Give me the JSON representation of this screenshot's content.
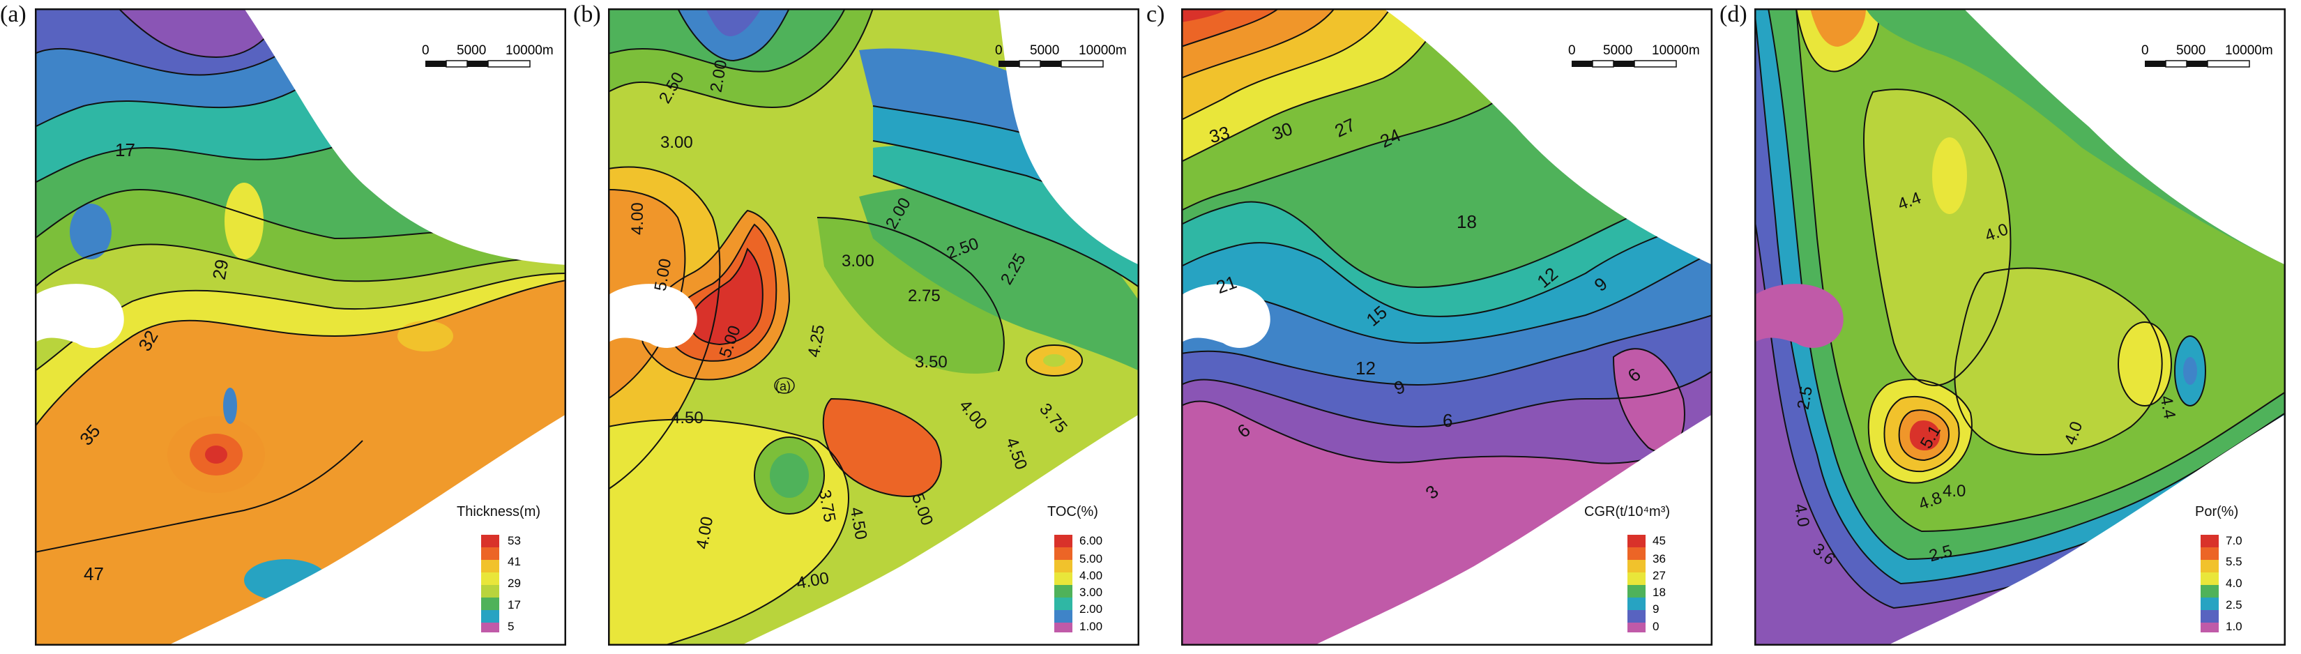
{
  "colors": {
    "ramp": [
      "#c05aa8",
      "#8a55b5",
      "#5863c0",
      "#3f84c8",
      "#27a3c2",
      "#2fb7a4",
      "#4fb25a",
      "#7cbf3a",
      "#b9d43c",
      "#e9e63a",
      "#f1c22c",
      "#f0962a",
      "#ec6526",
      "#d9322a"
    ],
    "frame": "#111111",
    "mask": "#ffffff"
  },
  "scalebar": {
    "ticks": [
      "0",
      "5000",
      "10000m"
    ]
  },
  "panels": [
    {
      "id": "a",
      "label": "(a)",
      "legend_title": "Thickness(m)",
      "legend_ticks": [
        "53",
        "41",
        "29",
        "17",
        "5"
      ],
      "contour_labels": [
        "17",
        "29",
        "32",
        "35",
        "47"
      ],
      "point_labels": []
    },
    {
      "id": "b",
      "label": "(b)",
      "legend_title": "TOC(%)",
      "legend_ticks": [
        "6.00",
        "5.00",
        "4.00",
        "3.00",
        "2.00",
        "1.00"
      ],
      "contour_labels": [
        "2.00",
        "2.50",
        "3.00",
        "4.00",
        "5.00",
        "3.00",
        "2.00",
        "2.50",
        "2.25",
        "2.75",
        "5.00",
        "4.25",
        "3.50",
        "4.50",
        "4.00",
        "3.75",
        "4.50",
        "3.75",
        "4.50",
        "5.00",
        "4.00",
        "4.00"
      ],
      "point_labels": [
        "(a)"
      ]
    },
    {
      "id": "c",
      "label": "c)",
      "legend_title": "CGR(t/10⁴m³)",
      "legend_ticks": [
        "45",
        "36",
        "27",
        "18",
        "9",
        "0"
      ],
      "contour_labels": [
        "33",
        "30",
        "27",
        "24",
        "18",
        "21",
        "15",
        "12",
        "9",
        "12",
        "9",
        "6",
        "6",
        "6",
        "3"
      ],
      "point_labels": []
    },
    {
      "id": "d",
      "label": "(d)",
      "legend_title": "Por(%)",
      "legend_ticks": [
        "7.0",
        "5.5",
        "4.0",
        "2.5",
        "1.0"
      ],
      "contour_labels": [
        "4.4",
        "4.0",
        "2.5",
        "4.0",
        "4.4",
        "5.1",
        "4.8",
        "4.0",
        "3.6",
        "2.5",
        "4.0"
      ],
      "point_labels": []
    }
  ]
}
